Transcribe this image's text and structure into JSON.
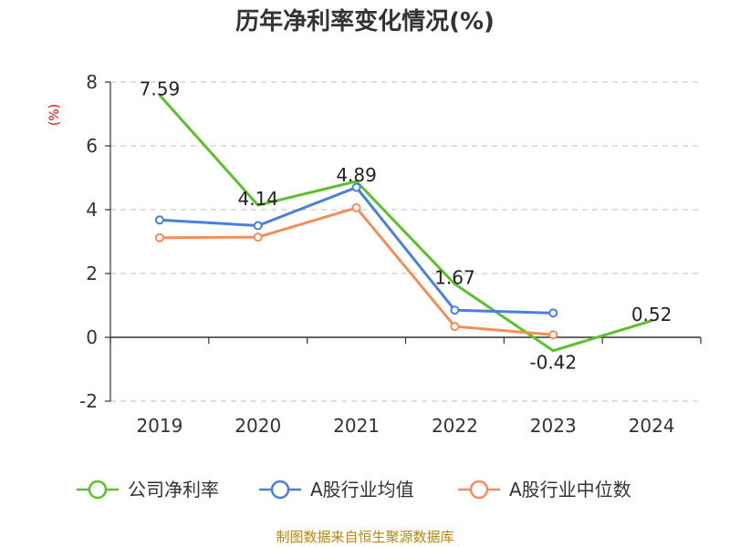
{
  "chart_data": {
    "type": "line",
    "title": "历年净利率变化情况(%)",
    "ylabel": "(%)",
    "categories": [
      "2019",
      "2020",
      "2021",
      "2022",
      "2023",
      "2024"
    ],
    "ylim": [
      -2,
      8
    ],
    "yticks": [
      -2,
      0,
      2,
      4,
      6,
      8
    ],
    "grid": true,
    "legend_position": "bottom",
    "series": [
      {
        "name": "公司净利率",
        "color": "#5cc02a",
        "values": [
          7.59,
          4.14,
          4.89,
          1.67,
          -0.42,
          0.52
        ],
        "labels": [
          "7.59",
          "4.14",
          "4.89",
          "1.67",
          "-0.42",
          "0.52"
        ],
        "markers": false
      },
      {
        "name": "A股行业均值",
        "color": "#4a7fde",
        "values": [
          3.68,
          3.5,
          4.7,
          0.85,
          0.76,
          null
        ],
        "markers": true
      },
      {
        "name": "A股行业中位数",
        "color": "#f58d5a",
        "values": [
          3.12,
          3.14,
          4.06,
          0.34,
          0.08,
          null
        ],
        "markers": true
      }
    ]
  },
  "source": "制图数据来自恒生聚源数据库"
}
